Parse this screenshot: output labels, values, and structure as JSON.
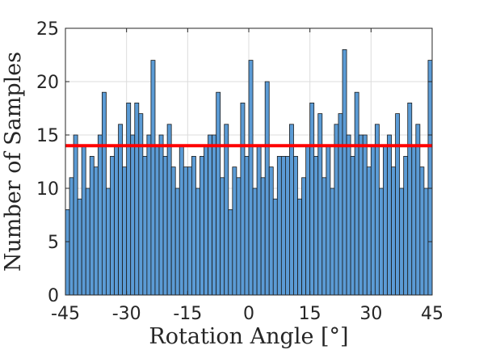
{
  "chart_data": {
    "type": "bar",
    "title": "",
    "xlabel": "Rotation Angle [°]",
    "ylabel": "Number of Samples",
    "xlim": [
      -45,
      45
    ],
    "ylim": [
      0,
      25
    ],
    "xticks": [
      -45,
      -30,
      -15,
      0,
      15,
      30,
      45
    ],
    "yticks": [
      0,
      5,
      10,
      15,
      20,
      25
    ],
    "grid": true,
    "bin_start": -45,
    "bin_width": 1,
    "counts": [
      8,
      11,
      15,
      9,
      14,
      10,
      13,
      12,
      15,
      19,
      10,
      13,
      14,
      16,
      12,
      18,
      15,
      18,
      17,
      13,
      15,
      22,
      14,
      15,
      13,
      16,
      12,
      10,
      14,
      12,
      12,
      13,
      10,
      13,
      14,
      15,
      15,
      19,
      11,
      16,
      8,
      12,
      11,
      18,
      13,
      22,
      10,
      14,
      11,
      20,
      12,
      9,
      13,
      13,
      13,
      16,
      13,
      9,
      11,
      14,
      18,
      13,
      17,
      11,
      14,
      10,
      16,
      17,
      23,
      15,
      13,
      19,
      15,
      15,
      12,
      14,
      16,
      10,
      14,
      15,
      12,
      17,
      10,
      13,
      18,
      14,
      16,
      12,
      10,
      22
    ],
    "mean_line": {
      "value": 14,
      "color": "#ff0000"
    },
    "bar_color": "#5b9bd5",
    "bar_edge_color": "#1a1a1a"
  }
}
